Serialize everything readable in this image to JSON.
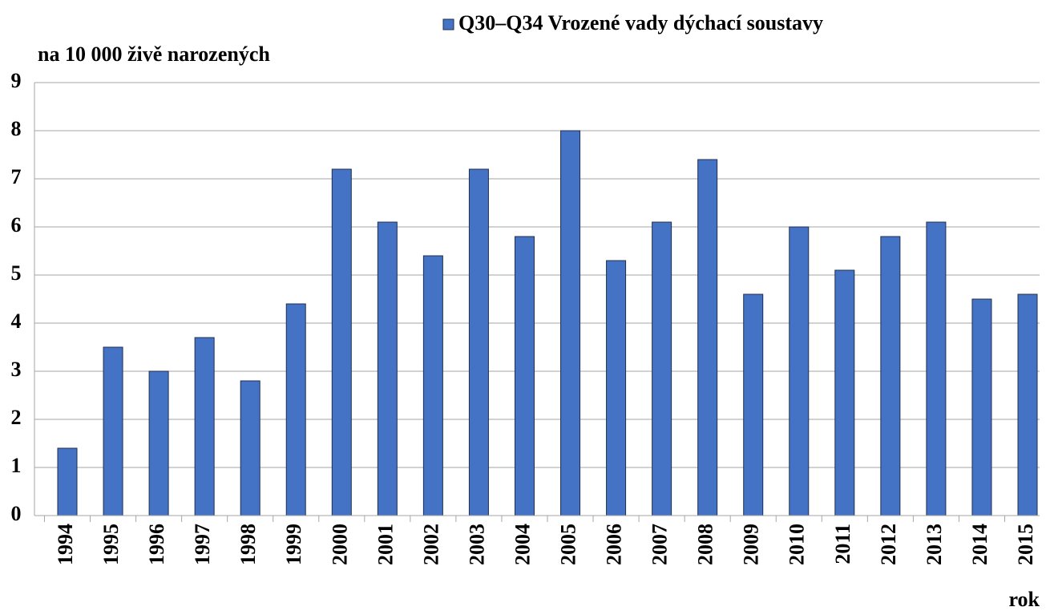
{
  "chart_data": {
    "type": "bar",
    "y_label": "na 10 000 živě narozených",
    "x_label": "rok",
    "categories": [
      "1994",
      "1995",
      "1996",
      "1997",
      "1998",
      "1999",
      "2000",
      "2001",
      "2002",
      "2003",
      "2004",
      "2005",
      "2006",
      "2007",
      "2008",
      "2009",
      "2010",
      "2011",
      "2012",
      "2013",
      "2014",
      "2015"
    ],
    "series": [
      {
        "name": "Q30–Q34 Vrozené vady dýchací soustavy",
        "color": "#4472c4",
        "values": [
          1.4,
          3.5,
          3.0,
          3.7,
          2.8,
          4.4,
          7.2,
          6.1,
          5.4,
          7.2,
          5.8,
          8.0,
          5.3,
          6.1,
          7.4,
          4.6,
          6.0,
          5.1,
          5.8,
          6.1,
          4.5,
          4.6
        ]
      }
    ],
    "ylim": [
      0,
      9
    ],
    "yticks": [
      0,
      1,
      2,
      3,
      4,
      5,
      6,
      7,
      8,
      9
    ],
    "grid": true
  }
}
